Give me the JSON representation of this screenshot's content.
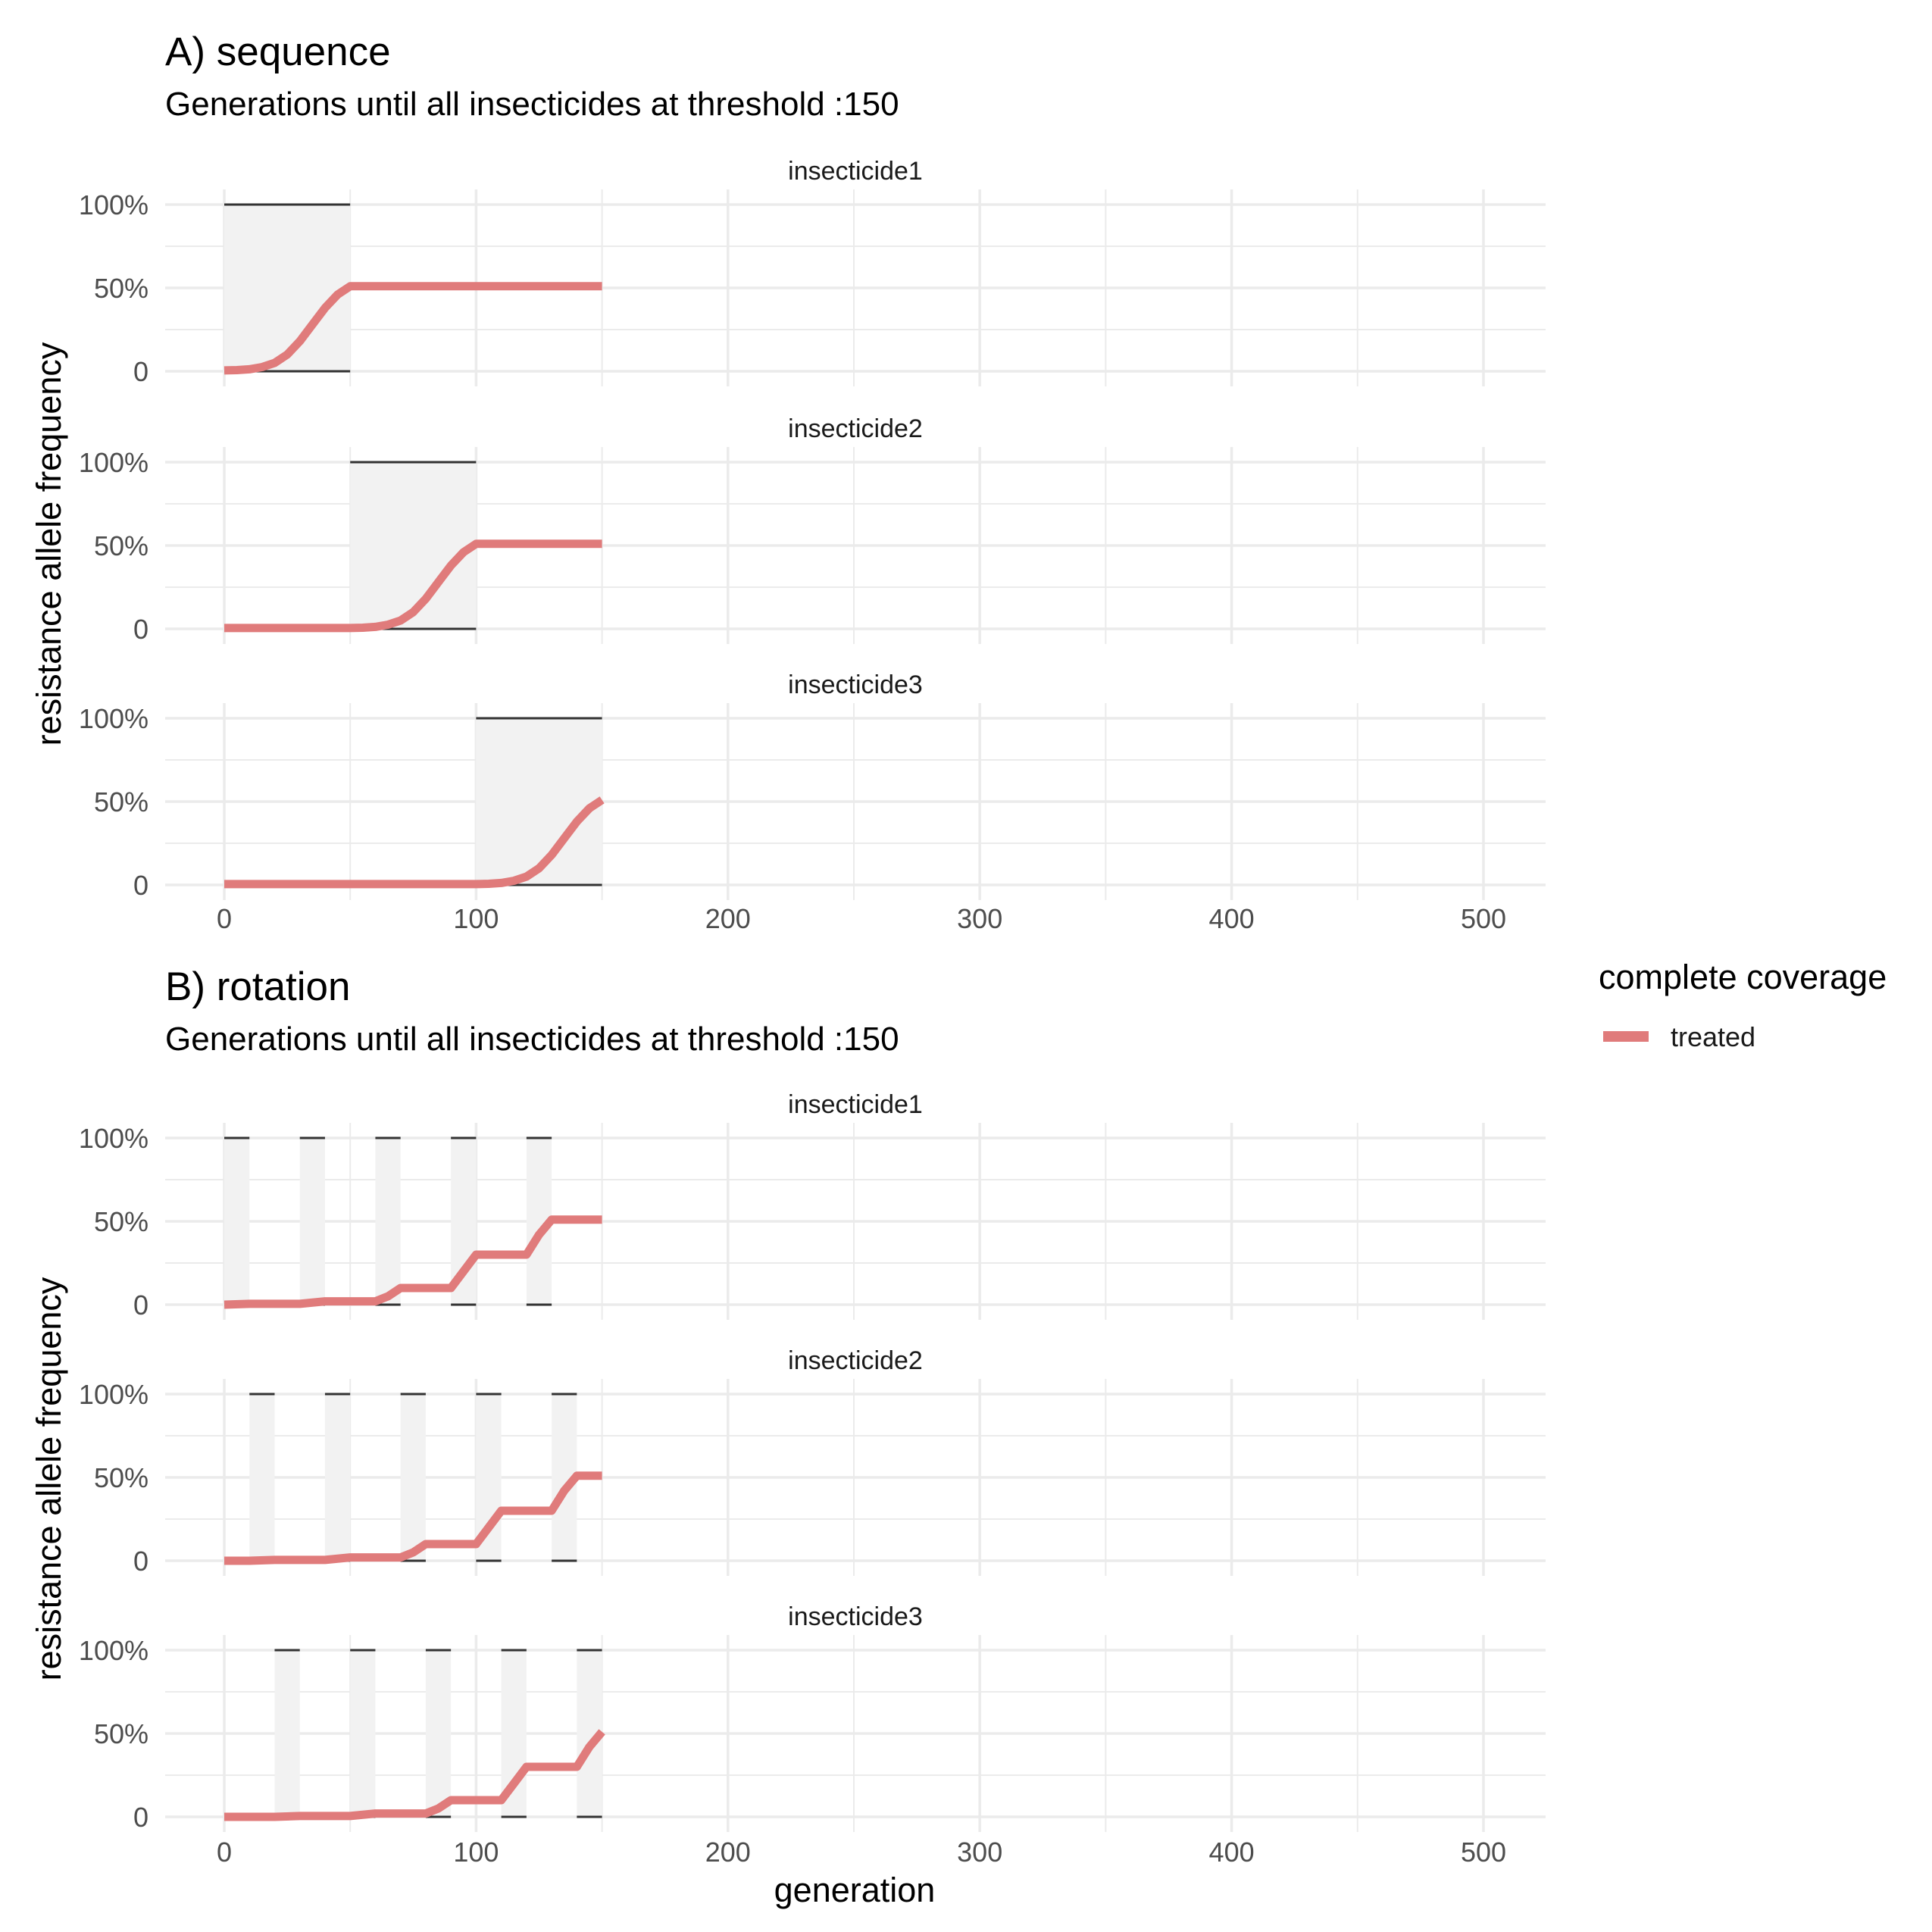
{
  "chart_data": [
    {
      "type": "line",
      "title": "A) sequence",
      "subtitle": "Generations until all insecticides at threshold :150",
      "xlabel": "generation",
      "ylabel": "resistance allele frequency",
      "xlim": [
        0,
        520
      ],
      "ylim": [
        0,
        1
      ],
      "x_ticks": [
        0,
        100,
        200,
        300,
        400,
        500
      ],
      "y_ticks": [
        0,
        0.5,
        1
      ],
      "y_tick_labels": [
        "0",
        "50%",
        "100%"
      ],
      "grid": true,
      "facets": [
        {
          "label": "insecticide1",
          "deployed_intervals": [
            [
              0,
              50
            ]
          ],
          "series": [
            {
              "name": "treated",
              "x": [
                0,
                5,
                10,
                15,
                20,
                25,
                30,
                35,
                40,
                45,
                50,
                60,
                80,
                100,
                120,
                140,
                150
              ],
              "y": [
                0.005,
                0.007,
                0.012,
                0.025,
                0.05,
                0.1,
                0.18,
                0.28,
                0.38,
                0.46,
                0.51,
                0.51,
                0.51,
                0.51,
                0.51,
                0.51,
                0.51
              ]
            }
          ]
        },
        {
          "label": "insecticide2",
          "deployed_intervals": [
            [
              50,
              100
            ]
          ],
          "series": [
            {
              "name": "treated",
              "x": [
                0,
                25,
                50,
                55,
                60,
                65,
                70,
                75,
                80,
                85,
                90,
                95,
                100,
                120,
                150
              ],
              "y": [
                0.005,
                0.005,
                0.005,
                0.007,
                0.012,
                0.025,
                0.05,
                0.1,
                0.18,
                0.28,
                0.38,
                0.46,
                0.51,
                0.51,
                0.51
              ]
            }
          ]
        },
        {
          "label": "insecticide3",
          "deployed_intervals": [
            [
              100,
              150
            ]
          ],
          "series": [
            {
              "name": "treated",
              "x": [
                0,
                50,
                100,
                105,
                110,
                115,
                120,
                125,
                130,
                135,
                140,
                145,
                150
              ],
              "y": [
                0.005,
                0.005,
                0.005,
                0.007,
                0.012,
                0.025,
                0.05,
                0.1,
                0.18,
                0.28,
                0.38,
                0.46,
                0.51
              ]
            }
          ]
        }
      ]
    },
    {
      "type": "line",
      "title": "B) rotation",
      "subtitle": "Generations until all insecticides at threshold :150",
      "xlabel": "generation",
      "ylabel": "resistance allele frequency",
      "xlim": [
        0,
        520
      ],
      "ylim": [
        0,
        1
      ],
      "x_ticks": [
        0,
        100,
        200,
        300,
        400,
        500
      ],
      "y_ticks": [
        0,
        0.5,
        1
      ],
      "y_tick_labels": [
        "0",
        "50%",
        "100%"
      ],
      "grid": true,
      "facets": [
        {
          "label": "insecticide1",
          "deployed_intervals": [
            [
              0,
              10
            ],
            [
              30,
              40
            ],
            [
              60,
              70
            ],
            [
              90,
              100
            ],
            [
              120,
              130
            ]
          ],
          "series": [
            {
              "name": "treated",
              "x": [
                0,
                10,
                30,
                40,
                60,
                65,
                70,
                90,
                95,
                100,
                120,
                125,
                130,
                150
              ],
              "y": [
                0.0,
                0.005,
                0.005,
                0.02,
                0.02,
                0.05,
                0.1,
                0.1,
                0.2,
                0.3,
                0.3,
                0.42,
                0.51,
                0.51
              ]
            }
          ]
        },
        {
          "label": "insecticide2",
          "deployed_intervals": [
            [
              10,
              20
            ],
            [
              40,
              50
            ],
            [
              70,
              80
            ],
            [
              100,
              110
            ],
            [
              130,
              140
            ]
          ],
          "series": [
            {
              "name": "treated",
              "x": [
                0,
                10,
                20,
                40,
                50,
                70,
                75,
                80,
                100,
                105,
                110,
                130,
                135,
                140,
                150
              ],
              "y": [
                0.0,
                0.0,
                0.005,
                0.005,
                0.02,
                0.02,
                0.05,
                0.1,
                0.1,
                0.2,
                0.3,
                0.3,
                0.42,
                0.51,
                0.51
              ]
            }
          ]
        },
        {
          "label": "insecticide3",
          "deployed_intervals": [
            [
              20,
              30
            ],
            [
              50,
              60
            ],
            [
              80,
              90
            ],
            [
              110,
              120
            ],
            [
              140,
              150
            ]
          ],
          "series": [
            {
              "name": "treated",
              "x": [
                0,
                20,
                30,
                50,
                60,
                80,
                85,
                90,
                110,
                115,
                120,
                140,
                145,
                150
              ],
              "y": [
                0.0,
                0.0,
                0.005,
                0.005,
                0.02,
                0.02,
                0.05,
                0.1,
                0.1,
                0.2,
                0.3,
                0.3,
                0.42,
                0.51
              ]
            }
          ]
        }
      ]
    }
  ],
  "legend": {
    "title": "complete coverage",
    "items": [
      {
        "label": "treated",
        "color": "#e07b7b"
      }
    ]
  },
  "colors": {
    "line": "#e07b7b",
    "shade": "#f2f2f2",
    "grid": "#ebebeb",
    "bound": "#333333"
  }
}
